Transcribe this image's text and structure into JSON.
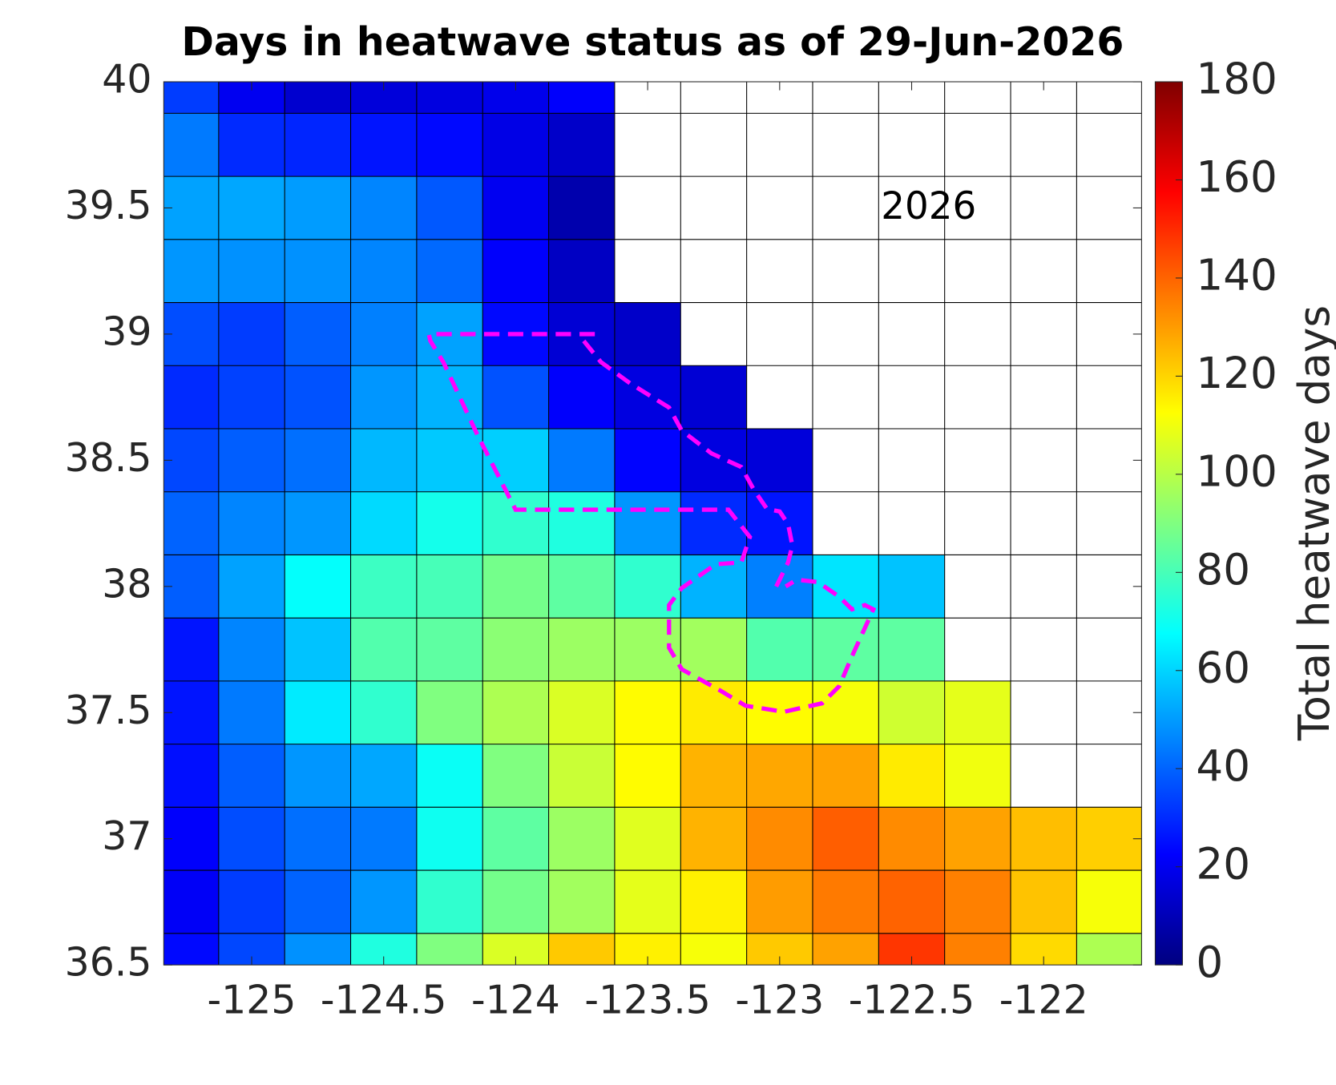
{
  "chart_data": {
    "type": "heatmap",
    "title": "Days in heatwave status as of 29-Jun-2026",
    "annotation": "2026",
    "colorbar_label": "Total heatwave days",
    "colormap": "jet",
    "clim": [
      0,
      180
    ],
    "cticks": [
      0,
      20,
      40,
      60,
      80,
      100,
      120,
      140,
      160,
      180
    ],
    "xlim": [
      -125.333,
      -121.629
    ],
    "ylim": [
      36.5,
      40
    ],
    "xticks": [
      -125,
      -124.5,
      -124,
      -123.5,
      -123,
      -122.5,
      -122
    ],
    "yticks": [
      36.5,
      37,
      37.5,
      38,
      38.5,
      39,
      39.5,
      40
    ],
    "x": [
      -125.25,
      -125,
      -124.75,
      -124.5,
      -124.25,
      -124,
      -123.75,
      -123.5,
      -123.25,
      -123,
      -122.75,
      -122.5,
      -122.25,
      -122,
      -121.75
    ],
    "y": [
      40,
      39.75,
      39.5,
      39.25,
      39,
      38.75,
      38.5,
      38.25,
      38,
      37.75,
      37.5,
      37.25,
      37,
      36.75,
      36.5
    ],
    "z": [
      [
        33,
        20,
        14,
        16,
        17,
        19,
        22,
        null,
        null,
        null,
        null,
        null,
        null,
        null,
        null
      ],
      [
        44,
        30,
        29,
        26,
        24,
        18,
        13,
        null,
        null,
        null,
        null,
        null,
        null,
        null,
        null
      ],
      [
        51,
        52,
        50,
        46,
        38,
        20,
        8,
        null,
        null,
        null,
        null,
        null,
        null,
        null,
        null
      ],
      [
        49,
        48,
        48,
        46,
        41,
        22,
        12,
        null,
        null,
        null,
        null,
        null,
        null,
        null,
        null
      ],
      [
        36,
        33,
        39,
        45,
        51,
        24,
        15,
        13,
        null,
        null,
        null,
        null,
        null,
        null,
        null
      ],
      [
        30,
        34,
        37,
        49,
        54,
        37,
        22,
        17,
        15,
        null,
        null,
        null,
        null,
        null,
        null
      ],
      [
        35,
        39,
        42,
        55,
        58,
        59,
        44,
        23,
        17,
        16,
        null,
        null,
        null,
        null,
        null
      ],
      [
        40,
        46,
        49,
        61,
        71,
        76,
        73,
        49,
        30,
        26,
        null,
        null,
        null,
        null,
        null
      ],
      [
        39,
        51,
        68,
        78,
        80,
        88,
        84,
        76,
        54,
        45,
        63,
        57,
        null,
        null,
        null
      ],
      [
        26,
        46,
        57,
        82,
        84,
        92,
        95,
        95,
        96,
        82,
        84,
        84,
        null,
        null,
        null
      ],
      [
        26,
        44,
        64,
        76,
        90,
        98,
        106,
        113,
        116,
        113,
        111,
        104,
        108,
        null,
        null
      ],
      [
        25,
        39,
        49,
        52,
        69,
        90,
        103,
        113,
        126,
        128,
        129,
        116,
        110,
        null,
        null
      ],
      [
        22,
        36,
        42,
        44,
        70,
        84,
        95,
        107,
        126,
        133,
        141,
        133,
        129,
        124,
        121
      ],
      [
        21,
        33,
        40,
        49,
        76,
        88,
        96,
        108,
        115,
        130,
        136,
        140,
        135,
        123,
        111
      ],
      [
        24,
        35,
        48,
        73,
        90,
        106,
        122,
        115,
        111,
        122,
        129,
        148,
        135,
        119,
        98
      ]
    ],
    "outline_color": "#ff00ff",
    "outlines": [
      {
        "x": [
          -123.7,
          -124.329,
          -124.323,
          -124.274,
          -124.145,
          -124.0,
          -123.194,
          -123.113,
          -123.145,
          -123.242,
          -123.371,
          -123.419,
          -123.419,
          -123.371,
          -123.226,
          -123.129,
          -122.984,
          -122.839,
          -122.774,
          -122.726,
          -122.645,
          -122.677,
          -122.726,
          -122.774,
          -122.855,
          -122.935,
          -122.977
        ],
        "y": [
          39.0,
          39.0,
          38.973,
          38.889,
          38.601,
          38.304,
          38.304,
          38.196,
          38.095,
          38.088,
          37.993,
          37.926,
          37.757,
          37.672,
          37.588,
          37.527,
          37.503,
          37.537,
          37.605,
          37.723,
          37.909,
          37.926,
          37.909,
          37.959,
          38.017,
          38.027,
          38.0
        ]
      },
      {
        "x": [
          -123.742,
          -123.677,
          -123.565,
          -123.419,
          -123.371,
          -123.258,
          -123.145,
          -123.097,
          -123.048,
          -123.0,
          -122.968,
          -122.952,
          -122.968,
          -123.016
        ],
        "y": [
          38.973,
          38.889,
          38.804,
          38.709,
          38.618,
          38.527,
          38.473,
          38.382,
          38.307,
          38.297,
          38.247,
          38.162,
          38.095,
          37.993
        ]
      }
    ]
  }
}
